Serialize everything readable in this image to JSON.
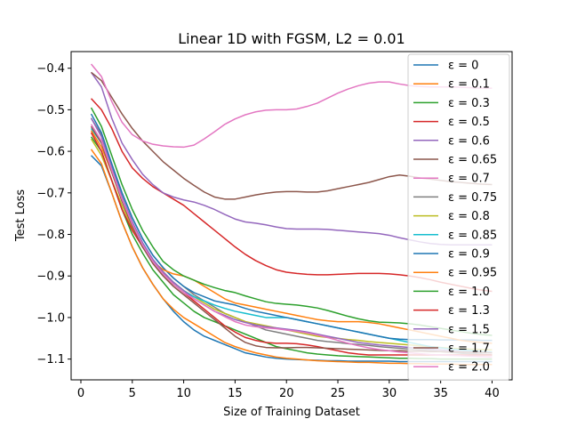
{
  "chart_data": {
    "type": "line",
    "title": "Linear 1D with FGSM, L2 = 0.01",
    "xlabel": "Size of Training Dataset",
    "ylabel": "Test Loss",
    "xlim": [
      -0.95,
      41.95
    ],
    "ylim": [
      -1.15,
      -0.36
    ],
    "xticks": [
      0,
      5,
      10,
      15,
      20,
      25,
      30,
      35,
      40
    ],
    "yticks": [
      -1.1,
      -1.0,
      -0.9,
      -0.8,
      -0.7,
      -0.6,
      -0.5,
      -0.4
    ],
    "ytick_labels": [
      "−1.1",
      "−1.0",
      "−0.9",
      "−0.8",
      "−0.7",
      "−0.6",
      "−0.5",
      "−0.4"
    ],
    "grid": false,
    "legend_position": "upper right",
    "x": [
      1,
      2,
      3,
      4,
      5,
      6,
      7,
      8,
      9,
      10,
      11,
      12,
      13,
      14,
      15,
      16,
      17,
      18,
      19,
      20,
      21,
      22,
      23,
      24,
      25,
      26,
      27,
      28,
      29,
      30,
      31,
      32,
      33,
      34,
      35,
      36,
      37,
      38,
      39,
      40
    ],
    "series": [
      {
        "name": "ε = 0",
        "color": "#1f77b4",
        "values": [
          -0.61,
          -0.635,
          -0.7,
          -0.77,
          -0.83,
          -0.88,
          -0.92,
          -0.955,
          -0.985,
          -1.01,
          -1.03,
          -1.045,
          -1.055,
          -1.065,
          -1.075,
          -1.085,
          -1.09,
          -1.095,
          -1.098,
          -1.1,
          -1.101,
          -1.102,
          -1.103,
          -1.104,
          -1.104,
          -1.105,
          -1.105,
          -1.105,
          -1.105,
          -1.105,
          -1.106,
          -1.106,
          -1.106,
          -1.106,
          -1.106,
          -1.106,
          -1.106,
          -1.106,
          -1.106,
          -1.106
        ]
      },
      {
        "name": "ε = 0.1",
        "color": "#ff7f0e",
        "values": [
          -0.595,
          -0.63,
          -0.7,
          -0.77,
          -0.83,
          -0.88,
          -0.92,
          -0.955,
          -0.98,
          -1.0,
          -1.015,
          -1.03,
          -1.045,
          -1.06,
          -1.07,
          -1.078,
          -1.085,
          -1.09,
          -1.095,
          -1.098,
          -1.1,
          -1.102,
          -1.104,
          -1.105,
          -1.106,
          -1.107,
          -1.108,
          -1.108,
          -1.109,
          -1.11,
          -1.11,
          -1.111,
          -1.111,
          -1.112,
          -1.112,
          -1.112,
          -1.113,
          -1.113,
          -1.113,
          -1.113
        ]
      },
      {
        "name": "ε = 0.3",
        "color": "#2ca02c",
        "values": [
          -0.565,
          -0.6,
          -0.67,
          -0.74,
          -0.8,
          -0.845,
          -0.885,
          -0.915,
          -0.945,
          -0.965,
          -0.985,
          -1.0,
          -1.01,
          -1.02,
          -1.03,
          -1.04,
          -1.05,
          -1.06,
          -1.07,
          -1.075,
          -1.08,
          -1.085,
          -1.088,
          -1.09,
          -1.092,
          -1.093,
          -1.094,
          -1.095,
          -1.096,
          -1.097,
          -1.098,
          -1.098,
          -1.099,
          -1.099,
          -1.1,
          -1.1,
          -1.1,
          -1.1,
          -1.1,
          -1.1
        ]
      },
      {
        "name": "ε = 0.5",
        "color": "#d62728",
        "values": [
          -0.473,
          -0.5,
          -0.545,
          -0.6,
          -0.64,
          -0.665,
          -0.685,
          -0.7,
          -0.715,
          -0.73,
          -0.75,
          -0.77,
          -0.79,
          -0.81,
          -0.83,
          -0.848,
          -0.863,
          -0.875,
          -0.885,
          -0.891,
          -0.894,
          -0.896,
          -0.897,
          -0.897,
          -0.896,
          -0.895,
          -0.894,
          -0.894,
          -0.894,
          -0.895,
          -0.897,
          -0.9,
          -0.904,
          -0.909,
          -0.915,
          -0.92,
          -0.925,
          -0.93,
          -0.934,
          -0.937
        ]
      },
      {
        "name": "ε = 0.6",
        "color": "#9467bd",
        "values": [
          -0.41,
          -0.445,
          -0.52,
          -0.58,
          -0.62,
          -0.655,
          -0.68,
          -0.7,
          -0.71,
          -0.717,
          -0.722,
          -0.73,
          -0.74,
          -0.752,
          -0.763,
          -0.77,
          -0.773,
          -0.777,
          -0.782,
          -0.786,
          -0.787,
          -0.787,
          -0.787,
          -0.788,
          -0.79,
          -0.792,
          -0.794,
          -0.796,
          -0.798,
          -0.802,
          -0.808,
          -0.813,
          -0.818,
          -0.822,
          -0.824,
          -0.825,
          -0.825,
          -0.825,
          -0.825,
          -0.825
        ]
      },
      {
        "name": "ε = 0.65",
        "color": "#8c564b",
        "values": [
          -0.41,
          -0.43,
          -0.47,
          -0.51,
          -0.545,
          -0.575,
          -0.6,
          -0.625,
          -0.645,
          -0.665,
          -0.682,
          -0.698,
          -0.71,
          -0.715,
          -0.715,
          -0.71,
          -0.705,
          -0.701,
          -0.698,
          -0.697,
          -0.697,
          -0.698,
          -0.698,
          -0.695,
          -0.69,
          -0.685,
          -0.68,
          -0.675,
          -0.668,
          -0.661,
          -0.657,
          -0.66,
          -0.664,
          -0.667,
          -0.67,
          -0.673,
          -0.675,
          -0.677,
          -0.679,
          -0.68
        ]
      },
      {
        "name": "ε = 0.7",
        "color": "#e377c2",
        "values": [
          -0.39,
          -0.42,
          -0.48,
          -0.53,
          -0.56,
          -0.575,
          -0.583,
          -0.587,
          -0.589,
          -0.59,
          -0.585,
          -0.57,
          -0.553,
          -0.535,
          -0.522,
          -0.512,
          -0.505,
          -0.501,
          -0.5,
          -0.5,
          -0.498,
          -0.492,
          -0.484,
          -0.472,
          -0.46,
          -0.45,
          -0.442,
          -0.436,
          -0.433,
          -0.433,
          -0.438,
          -0.442,
          -0.444,
          -0.445,
          -0.445,
          -0.445,
          -0.446,
          -0.447,
          -0.448,
          -0.448
        ]
      },
      {
        "name": "ε = 0.75",
        "color": "#7f7f7f",
        "values": [
          -0.52,
          -0.56,
          -0.63,
          -0.7,
          -0.76,
          -0.81,
          -0.85,
          -0.88,
          -0.905,
          -0.925,
          -0.945,
          -0.96,
          -0.975,
          -0.99,
          -1.0,
          -1.01,
          -1.02,
          -1.03,
          -1.035,
          -1.04,
          -1.045,
          -1.05,
          -1.055,
          -1.058,
          -1.06,
          -1.063,
          -1.065,
          -1.067,
          -1.07,
          -1.072,
          -1.074,
          -1.076,
          -1.078,
          -1.08,
          -1.082,
          -1.084,
          -1.086,
          -1.087,
          -1.088,
          -1.09
        ]
      },
      {
        "name": "ε = 0.8",
        "color": "#bcbd22",
        "values": [
          -0.57,
          -0.61,
          -0.67,
          -0.73,
          -0.785,
          -0.83,
          -0.865,
          -0.89,
          -0.915,
          -0.935,
          -0.95,
          -0.965,
          -0.98,
          -0.99,
          -1.0,
          -1.01,
          -1.015,
          -1.02,
          -1.025,
          -1.03,
          -1.035,
          -1.04,
          -1.045,
          -1.048,
          -1.05,
          -1.053,
          -1.055,
          -1.058,
          -1.06,
          -1.062,
          -1.064,
          -1.066,
          -1.068,
          -1.07,
          -1.072,
          -1.074,
          -1.075,
          -1.076,
          -1.077,
          -1.078
        ]
      },
      {
        "name": "ε = 0.85",
        "color": "#17becf",
        "values": [
          -0.545,
          -0.58,
          -0.64,
          -0.71,
          -0.77,
          -0.82,
          -0.86,
          -0.89,
          -0.915,
          -0.935,
          -0.95,
          -0.96,
          -0.97,
          -0.978,
          -0.985,
          -0.99,
          -0.995,
          -1.0,
          -1.0,
          -1.0,
          -1.005,
          -1.01,
          -1.015,
          -1.02,
          -1.025,
          -1.03,
          -1.035,
          -1.04,
          -1.045,
          -1.05,
          -1.055,
          -1.06,
          -1.065,
          -1.07,
          -1.073,
          -1.076,
          -1.078,
          -1.08,
          -1.082,
          -1.083
        ]
      },
      {
        "name": "ε = 0.9",
        "color": "#1f77b4",
        "values": [
          -0.51,
          -0.555,
          -0.63,
          -0.7,
          -0.76,
          -0.81,
          -0.85,
          -0.88,
          -0.905,
          -0.925,
          -0.94,
          -0.95,
          -0.96,
          -0.965,
          -0.97,
          -0.978,
          -0.985,
          -0.99,
          -0.995,
          -1.0,
          -1.005,
          -1.01,
          -1.015,
          -1.02,
          -1.025,
          -1.03,
          -1.035,
          -1.04,
          -1.045,
          -1.05,
          -1.052,
          -1.053,
          -1.053,
          -1.053,
          -1.054,
          -1.054,
          -1.054,
          -1.054,
          -1.055,
          -1.055
        ]
      },
      {
        "name": "ε = 0.95",
        "color": "#ff7f0e",
        "values": [
          -0.55,
          -0.59,
          -0.65,
          -0.72,
          -0.78,
          -0.83,
          -0.865,
          -0.885,
          -0.895,
          -0.9,
          -0.91,
          -0.925,
          -0.94,
          -0.955,
          -0.965,
          -0.97,
          -0.975,
          -0.98,
          -0.985,
          -0.99,
          -0.995,
          -1.0,
          -1.005,
          -1.008,
          -1.01,
          -1.01,
          -1.01,
          -1.012,
          -1.015,
          -1.02,
          -1.025,
          -1.03,
          -1.035,
          -1.04,
          -1.045,
          -1.05,
          -1.055,
          -1.058,
          -1.06,
          -1.062
        ]
      },
      {
        "name": "ε = 1.0",
        "color": "#2ca02c",
        "values": [
          -0.495,
          -0.54,
          -0.61,
          -0.68,
          -0.74,
          -0.79,
          -0.83,
          -0.865,
          -0.885,
          -0.9,
          -0.91,
          -0.92,
          -0.928,
          -0.935,
          -0.94,
          -0.948,
          -0.955,
          -0.962,
          -0.966,
          -0.968,
          -0.97,
          -0.973,
          -0.977,
          -0.983,
          -0.99,
          -0.997,
          -1.003,
          -1.008,
          -1.011,
          -1.012,
          -1.013,
          -1.015,
          -1.018,
          -1.022,
          -1.026,
          -1.03,
          -1.034,
          -1.038,
          -1.041,
          -1.043
        ]
      },
      {
        "name": "ε = 1.3",
        "color": "#d62728",
        "values": [
          -0.555,
          -0.6,
          -0.67,
          -0.74,
          -0.79,
          -0.83,
          -0.865,
          -0.895,
          -0.92,
          -0.94,
          -0.96,
          -0.98,
          -1.0,
          -1.02,
          -1.035,
          -1.048,
          -1.055,
          -1.06,
          -1.062,
          -1.062,
          -1.063,
          -1.066,
          -1.07,
          -1.075,
          -1.08,
          -1.085,
          -1.088,
          -1.09,
          -1.09,
          -1.09,
          -1.09,
          -1.09,
          -1.09,
          -1.09,
          -1.09,
          -1.09,
          -1.09,
          -1.09,
          -1.09,
          -1.09
        ]
      },
      {
        "name": "ε = 1.5",
        "color": "#9467bd",
        "values": [
          -0.52,
          -0.565,
          -0.64,
          -0.71,
          -0.77,
          -0.82,
          -0.86,
          -0.89,
          -0.915,
          -0.935,
          -0.955,
          -0.97,
          -0.985,
          -0.995,
          -1.005,
          -1.012,
          -1.018,
          -1.022,
          -1.025,
          -1.028,
          -1.031,
          -1.035,
          -1.04,
          -1.045,
          -1.05,
          -1.055,
          -1.06,
          -1.063,
          -1.066,
          -1.068,
          -1.07,
          -1.072,
          -1.074,
          -1.076,
          -1.078,
          -1.08,
          -1.082,
          -1.083,
          -1.084,
          -1.085
        ]
      },
      {
        "name": "ε = 1.7",
        "color": "#8c564b",
        "values": [
          -0.54,
          -0.58,
          -0.65,
          -0.72,
          -0.78,
          -0.83,
          -0.87,
          -0.9,
          -0.925,
          -0.945,
          -0.965,
          -0.985,
          -1.005,
          -1.025,
          -1.045,
          -1.06,
          -1.068,
          -1.072,
          -1.073,
          -1.073,
          -1.072,
          -1.072,
          -1.073,
          -1.074,
          -1.075,
          -1.076,
          -1.077,
          -1.078,
          -1.079,
          -1.08,
          -1.08,
          -1.081,
          -1.081,
          -1.082,
          -1.082,
          -1.083,
          -1.083,
          -1.084,
          -1.084,
          -1.085
        ]
      },
      {
        "name": "ε = 2.0",
        "color": "#e377c2",
        "values": [
          -0.535,
          -0.575,
          -0.645,
          -0.715,
          -0.775,
          -0.825,
          -0.865,
          -0.895,
          -0.92,
          -0.94,
          -0.955,
          -0.97,
          -0.985,
          -0.998,
          -1.01,
          -1.018,
          -1.022,
          -1.025,
          -1.027,
          -1.03,
          -1.033,
          -1.037,
          -1.042,
          -1.048,
          -1.055,
          -1.062,
          -1.068,
          -1.073,
          -1.077,
          -1.08,
          -1.083,
          -1.085,
          -1.087,
          -1.089,
          -1.09,
          -1.091,
          -1.092,
          -1.093,
          -1.094,
          -1.095
        ]
      }
    ]
  }
}
